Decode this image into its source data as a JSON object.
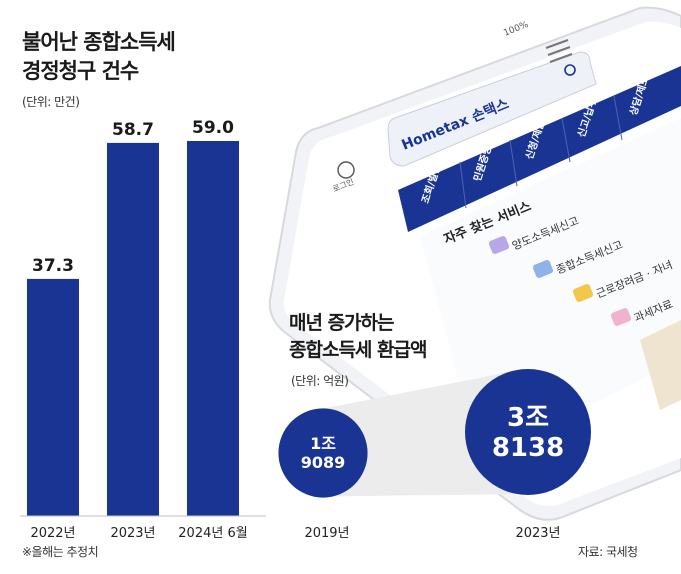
{
  "chart_data": [
    {
      "type": "bar",
      "title": "불어난 종합소득세 경정청구 건수",
      "title_lines": [
        "불어난 종합소득세",
        "경정청구 건수"
      ],
      "unit": "(단위: 만건)",
      "categories": [
        "2022년",
        "2023년",
        "2024년 6월"
      ],
      "values": [
        37.3,
        58.7,
        59.0
      ],
      "value_labels": [
        "37.3",
        "58.7",
        "59.0"
      ],
      "color": "#1a3494",
      "grid": false
    },
    {
      "type": "bubble",
      "title": "매년 증가하는 종합소득세 환급액",
      "title_lines": [
        "매년 증가하는",
        "종합소득세 환급액"
      ],
      "unit": "(단위: 억원)",
      "categories": [
        "2019년",
        "2023년"
      ],
      "values": [
        19089,
        38138
      ],
      "value_labels": [
        [
          "1조",
          "9089"
        ],
        [
          "3조",
          "8138"
        ]
      ],
      "color": "#1a3494"
    }
  ],
  "phone": {
    "status_time": "100%",
    "logo": "Hometax 손택스",
    "login": "로그인",
    "menu_items": [
      "조회/발급",
      "민원증명",
      "신청/제출",
      "신고/납부",
      "상담/제보"
    ],
    "section_title": "자주 찾는 서비스",
    "services": [
      "양도소득세신고",
      "종합소득세신고",
      "근로장려금 · 자녀",
      "과세자료"
    ]
  },
  "footnote": "※올해는 추정치",
  "source": "자료: 국세청"
}
